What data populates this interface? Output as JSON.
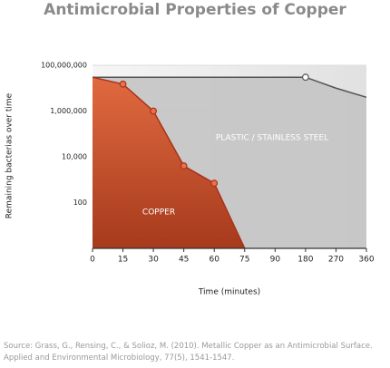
{
  "chart_data": {
    "type": "area",
    "title": "Antimicrobial Properties of Copper",
    "x_label": "Time (minutes)",
    "y_label": "Remaining bacterias over time",
    "categories": [
      "0",
      "15",
      "30",
      "45",
      "60",
      "75",
      "90",
      "180",
      "270",
      "360"
    ],
    "series": [
      {
        "name": "PLASTIC / STAINLESS STEEL",
        "color": "#555555",
        "fill": "#c4c4c4",
        "values": [
          30000000,
          30000000,
          30000000,
          30000000,
          30000000,
          30000000,
          30000000,
          30000000,
          10000000,
          4000000
        ],
        "markers": [
          false,
          false,
          false,
          false,
          false,
          false,
          false,
          true,
          false,
          false
        ]
      },
      {
        "name": "COPPER",
        "color": "#a8321a",
        "fill": "#d95a34",
        "values": [
          30000000,
          15000000,
          1000000,
          4000,
          700,
          1,
          null,
          null,
          null,
          null
        ],
        "markers": [
          false,
          true,
          true,
          true,
          true,
          false,
          false,
          false,
          false,
          false
        ]
      }
    ],
    "log_scale": true,
    "ylim": [
      1,
      100000000
    ],
    "yticks": [
      {
        "value": 100000000,
        "label": "100,000,000"
      },
      {
        "value": 1000000,
        "label": "1,000,000"
      },
      {
        "value": 10000,
        "label": "10,000"
      },
      100
    ],
    "grid": true,
    "source": "Source: Grass, G., Rensing, C., & Solioz, M. (2010). Metallic Copper as an Antimicrobial Surface. Applied and Environmental Microbiology, 77(5), 1541-1547."
  }
}
